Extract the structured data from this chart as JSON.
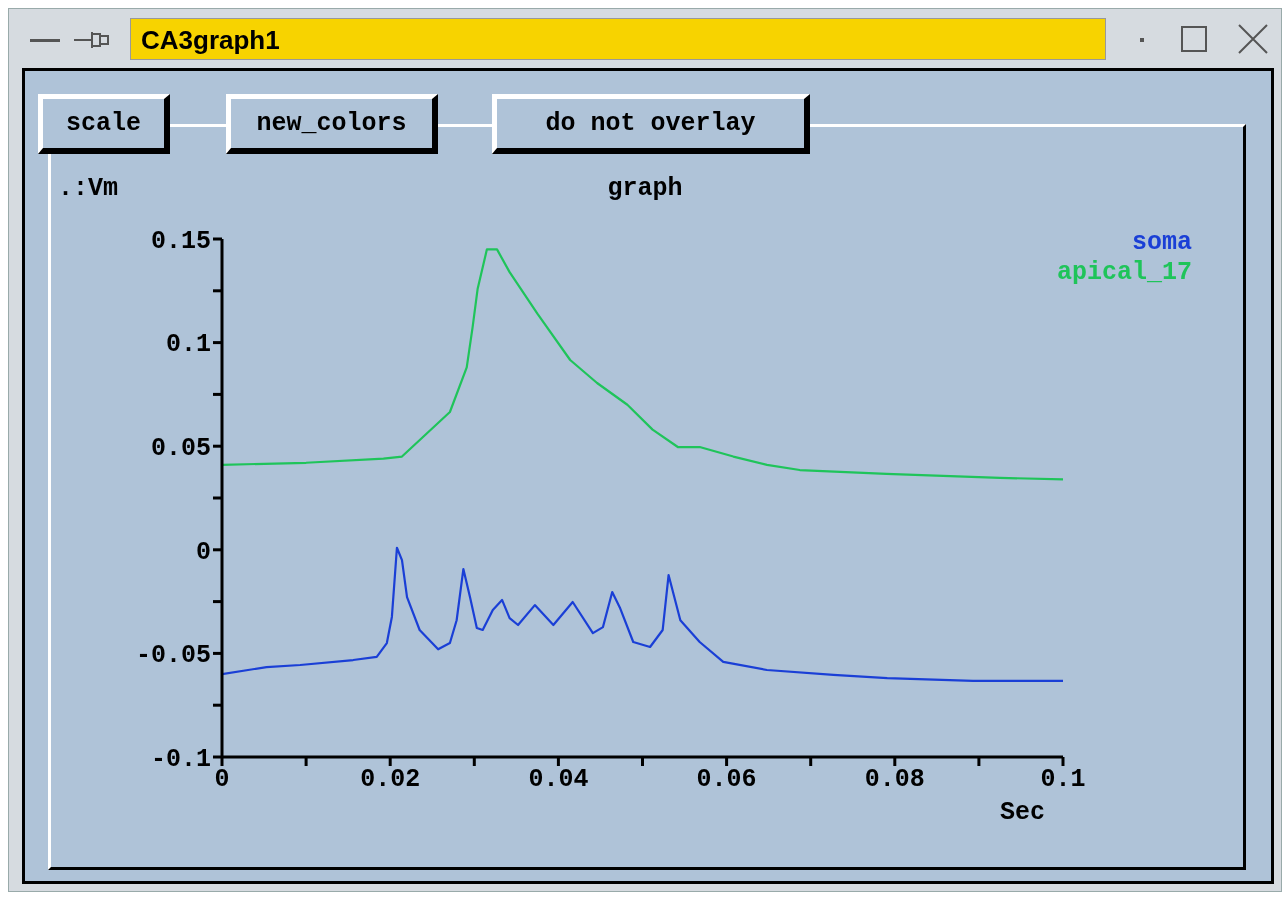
{
  "chart_data": {
    "type": "line",
    "title": "graph",
    "xlabel": "Sec",
    "ylabel": ".:Vm",
    "annotations": [
      "CA3graph1",
      "scale",
      "new_colors",
      "do not overlay"
    ],
    "xlim": [
      0,
      0.1
    ],
    "ylim": [
      -0.1,
      0.15
    ],
    "xticks": [
      0,
      {
        "value": 0.01,
        "label": null
      },
      0.02,
      {
        "value": 0.03,
        "label": null
      },
      0.04,
      {
        "value": 0.05,
        "label": null
      },
      0.06,
      {
        "value": 0.07,
        "label": null
      },
      0.08,
      {
        "value": 0.09,
        "label": null
      },
      0.1
    ],
    "yticks": [
      -0.1,
      {
        "value": -0.075,
        "label": null
      },
      -0.05,
      {
        "value": -0.025,
        "label": null
      },
      0,
      {
        "value": 0.025,
        "label": null
      },
      0.05,
      {
        "value": 0.075,
        "label": null
      },
      0.1,
      {
        "value": 0.125,
        "label": null
      },
      0.15
    ],
    "legend": "top right",
    "marker": "none",
    "line_style": "solid",
    "series": [
      {
        "name": "soma",
        "color": "#1a3fd6",
        "x": [
          0,
          0.0053,
          0.0093,
          0.0156,
          0.0184,
          0.0196,
          0.0202,
          0.0208,
          0.0214,
          0.022,
          0.0235,
          0.0257,
          0.0271,
          0.0279,
          0.0287,
          0.0295,
          0.0303,
          0.031,
          0.0322,
          0.0333,
          0.0342,
          0.0352,
          0.0372,
          0.0394,
          0.0417,
          0.0441,
          0.0453,
          0.0464,
          0.0473,
          0.0489,
          0.0509,
          0.0524,
          0.0531,
          0.0545,
          0.0568,
          0.0596,
          0.0648,
          0.0727,
          0.0791,
          0.0893,
          0.1
        ],
        "values": [
          -0.06,
          -0.0566,
          -0.0556,
          -0.0532,
          -0.0517,
          -0.045,
          -0.0324,
          0.001,
          -0.005,
          -0.0228,
          -0.0387,
          -0.048,
          -0.045,
          -0.034,
          -0.0093,
          -0.023,
          -0.0377,
          -0.0387,
          -0.029,
          -0.0242,
          -0.033,
          -0.0363,
          -0.0267,
          -0.0363,
          -0.0252,
          -0.0402,
          -0.0373,
          -0.0204,
          -0.0278,
          -0.0445,
          -0.0469,
          -0.0387,
          -0.0122,
          -0.034,
          -0.0445,
          -0.0541,
          -0.058,
          -0.0604,
          -0.0619,
          -0.0633,
          -0.0633
        ]
      },
      {
        "name": "apical_17",
        "color": "#1fc45a",
        "x": [
          0,
          0.01,
          0.0192,
          0.0214,
          0.0271,
          0.0291,
          0.0298,
          0.0304,
          0.0315,
          0.0327,
          0.0342,
          0.0375,
          0.0414,
          0.0446,
          0.0482,
          0.0512,
          0.0542,
          0.0568,
          0.0608,
          0.0648,
          0.0687,
          0.079,
          0.0925,
          0.1
        ],
        "values": [
          0.041,
          0.042,
          0.044,
          0.045,
          0.0665,
          0.088,
          0.1075,
          0.126,
          0.145,
          0.145,
          0.134,
          0.114,
          0.0916,
          0.0805,
          0.07,
          0.058,
          0.0496,
          0.0496,
          0.045,
          0.041,
          0.0385,
          0.0366,
          0.0347,
          0.034
        ]
      }
    ]
  }
}
